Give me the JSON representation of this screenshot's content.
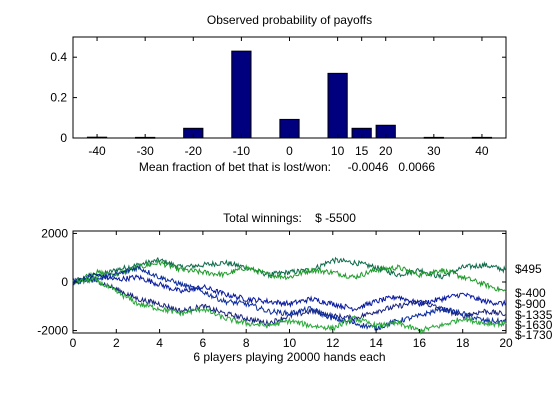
{
  "chart_data": [
    {
      "type": "bar",
      "title": "Observed probability of payoffs",
      "categories": [
        -40,
        -30,
        -20,
        -10,
        0,
        10,
        15,
        20,
        30,
        40
      ],
      "values": [
        0.004,
        0.003,
        0.048,
        0.43,
        0.092,
        0.32,
        0.048,
        0.063,
        0.003,
        0.003
      ],
      "xlim": [
        -45,
        45
      ],
      "ylim": [
        0,
        0.5
      ],
      "xticks": [
        -40,
        -30,
        -20,
        -10,
        0,
        10,
        15,
        20,
        30,
        40
      ],
      "yticks": [
        0,
        0.2,
        0.4
      ],
      "xlabel": "Mean fraction of bet that is lost/won:     -0.0046   0.0066",
      "bar_color": "#00007f",
      "grid": false,
      "legend": "none"
    },
    {
      "type": "line",
      "title": "Total winnings:    $ -5500",
      "xlabel": "6 players playing 20000 hands each",
      "xlim": [
        0,
        20
      ],
      "ylim": [
        -2100,
        2100
      ],
      "xticks": [
        0,
        2,
        4,
        6,
        8,
        10,
        12,
        14,
        16,
        18,
        20
      ],
      "yticks": [
        -2000,
        0,
        2000
      ],
      "grid": false,
      "legend": "none",
      "series": [
        {
          "color": "#0e6b4a",
          "x": [
            0,
            1,
            2,
            3,
            4,
            5,
            6,
            7,
            8,
            9,
            10,
            11,
            12,
            13,
            14,
            15,
            16,
            17,
            18,
            19,
            20
          ],
          "y": [
            0,
            200,
            500,
            700,
            900,
            600,
            700,
            800,
            600,
            300,
            400,
            500,
            900,
            800,
            600,
            300,
            500,
            200,
            600,
            700,
            495
          ],
          "end_label": "$495"
        },
        {
          "color": "#1f9b2a",
          "x": [
            0,
            1,
            2,
            3,
            4,
            5,
            6,
            7,
            8,
            9,
            10,
            11,
            12,
            13,
            14,
            15,
            16,
            17,
            18,
            19,
            20
          ],
          "y": [
            0,
            400,
            300,
            600,
            800,
            500,
            400,
            300,
            600,
            300,
            200,
            500,
            400,
            200,
            500,
            600,
            300,
            500,
            200,
            -100,
            -400
          ],
          "end_label": "$-400"
        },
        {
          "color": "#0a1aa0",
          "x": [
            0,
            1,
            2,
            3,
            4,
            5,
            6,
            7,
            8,
            9,
            10,
            11,
            12,
            13,
            14,
            15,
            16,
            17,
            18,
            19,
            20
          ],
          "y": [
            0,
            300,
            100,
            200,
            -100,
            -400,
            -200,
            -500,
            -700,
            -800,
            -900,
            -700,
            -900,
            -1100,
            -800,
            -600,
            -900,
            -700,
            -500,
            -800,
            -900
          ],
          "end_label": "$-900"
        },
        {
          "color": "#1a237e",
          "x": [
            0,
            1,
            2,
            3,
            4,
            5,
            6,
            7,
            8,
            9,
            10,
            11,
            12,
            13,
            14,
            15,
            16,
            17,
            18,
            19,
            20
          ],
          "y": [
            0,
            100,
            -300,
            -700,
            -900,
            -1200,
            -1000,
            -1300,
            -1500,
            -1700,
            -1400,
            -1200,
            -1400,
            -1500,
            -1200,
            -1000,
            -800,
            -1100,
            -1400,
            -1200,
            -1335
          ],
          "end_label": "$-1335"
        },
        {
          "color": "#0d2e9e",
          "x": [
            0,
            1,
            2,
            3,
            4,
            5,
            6,
            7,
            8,
            9,
            10,
            11,
            12,
            13,
            14,
            15,
            16,
            17,
            18,
            19,
            20
          ],
          "y": [
            0,
            100,
            300,
            600,
            200,
            -100,
            -400,
            -800,
            -900,
            -1200,
            -1300,
            -1100,
            -1500,
            -1700,
            -1900,
            -1600,
            -1400,
            -1100,
            -1300,
            -1600,
            -1630
          ],
          "end_label": "$-1630"
        },
        {
          "color": "#2aa83a",
          "x": [
            0,
            1,
            2,
            3,
            4,
            5,
            6,
            7,
            8,
            9,
            10,
            11,
            12,
            13,
            14,
            15,
            16,
            17,
            18,
            19,
            20
          ],
          "y": [
            0,
            100,
            -400,
            -900,
            -1100,
            -1300,
            -1100,
            -1500,
            -1700,
            -1800,
            -1600,
            -1800,
            -1900,
            -1500,
            -1800,
            -1700,
            -2000,
            -1800,
            -1500,
            -1700,
            -1730
          ],
          "end_label": "$-1730"
        }
      ]
    }
  ]
}
